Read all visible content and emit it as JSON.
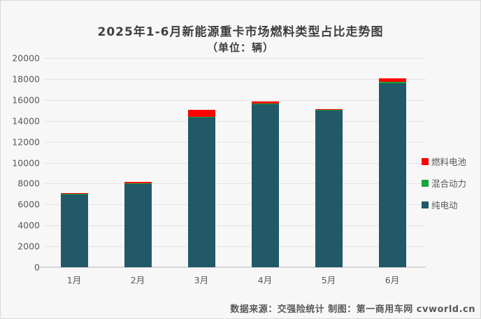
{
  "title": {
    "line1": "2025年1-6月新能源重卡市场燃料类型占比走势图",
    "line2": "（单位：辆）"
  },
  "footer": {
    "text": "数据来源：交强险统计  制图：第一商用车网 cvworld.cn"
  },
  "colors": {
    "background": "#F7F7F7",
    "border": "#D9D9D9",
    "gridline": "#E3E3E3",
    "axis_text": "#595959",
    "title_text": "#3F3F3F"
  },
  "chart_data": {
    "type": "bar",
    "stacked": true,
    "title": "2025年1-6月新能源重卡市场燃料类型占比走势图",
    "subtitle": "（单位：辆）",
    "categories": [
      "1月",
      "2月",
      "3月",
      "4月",
      "5月",
      "6月"
    ],
    "series": [
      {
        "name": "纯电动",
        "color": "#215968",
        "values": [
          6950,
          7950,
          14330,
          15580,
          14980,
          17560
        ]
      },
      {
        "name": "混合动力",
        "color": "#18A43B",
        "values": [
          40,
          100,
          50,
          100,
          30,
          140
        ]
      },
      {
        "name": "燃料电池",
        "color": "#FE0000",
        "values": [
          110,
          90,
          700,
          150,
          90,
          330
        ]
      }
    ],
    "legend": [
      "燃料电池",
      "混合动力",
      "纯电动"
    ],
    "legend_position": "right",
    "xlabel": "",
    "ylabel": "",
    "ylim": [
      0,
      20000
    ],
    "ytick_step": 2000,
    "yticks": [
      "0",
      "2000",
      "4000",
      "6000",
      "8000",
      "10000",
      "12000",
      "14000",
      "16000",
      "18000",
      "20000"
    ],
    "grid": true
  }
}
